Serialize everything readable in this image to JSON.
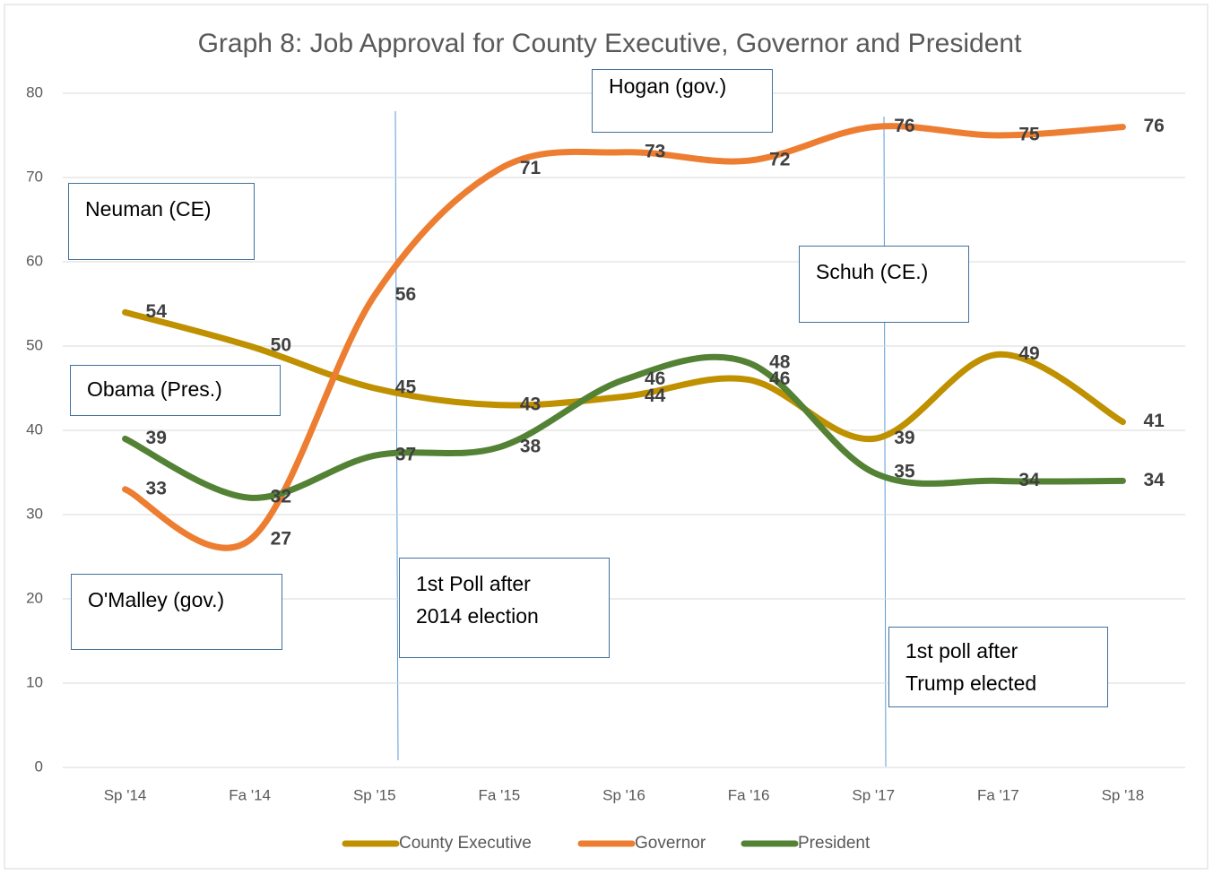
{
  "chart_data": {
    "type": "line",
    "title": "Graph 8: Job Approval for County Executive, Governor and President",
    "categories": [
      "Sp '14",
      "Fa '14",
      "Sp '15",
      "Fa '15",
      "Sp '16",
      "Fa '16",
      "Sp '17",
      "Fa '17",
      "Sp '18"
    ],
    "series": [
      {
        "name": "County Executive",
        "color": "#bf9000",
        "values": [
          54,
          50,
          45,
          43,
          44,
          46,
          39,
          49,
          41
        ]
      },
      {
        "name": "Governor",
        "color": "#ed7d31",
        "values": [
          33,
          27,
          56,
          71,
          73,
          72,
          76,
          75,
          76
        ]
      },
      {
        "name": "President",
        "color": "#548235",
        "values": [
          39,
          32,
          37,
          38,
          46,
          48,
          35,
          34,
          34
        ]
      }
    ],
    "ylim": [
      0,
      80
    ],
    "yticks": [
      0,
      10,
      20,
      30,
      40,
      50,
      60,
      70,
      80
    ],
    "grid": true,
    "smooth": true,
    "legend": "bottom",
    "annotations": [
      "Hogan (gov.)",
      "Neuman (CE)",
      "Schuh (CE.)",
      "Obama (Pres.)",
      "O'Malley (gov.)",
      "1st Poll after\n2014 election",
      "1st poll after\nTrump elected"
    ]
  }
}
